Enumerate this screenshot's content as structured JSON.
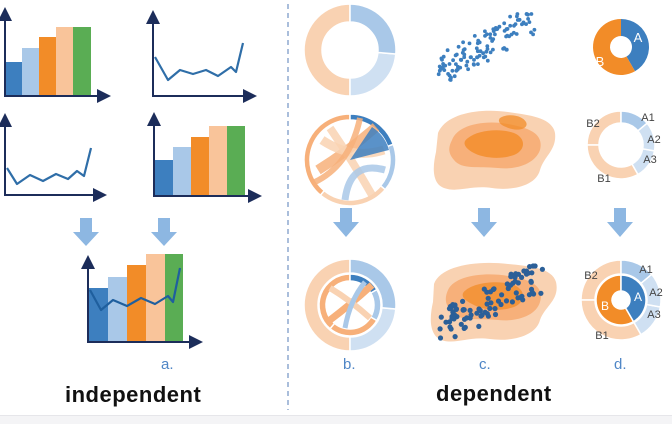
{
  "captions": {
    "independent_marker": "a.",
    "independent_label": "independent",
    "sunburst_marker": "b.",
    "scatter_marker": "c.",
    "donut_marker": "d.",
    "dependent_label": "dependent"
  },
  "donut": {
    "inner_labels": [
      "A",
      "B"
    ],
    "outer_labels": [
      "A1",
      "A2",
      "A3",
      "B1",
      "B2"
    ]
  },
  "colors": {
    "blue_dark": "#3d7fbf",
    "blue_light": "#a9c8e8",
    "blue_pale": "#cfe0f2",
    "orange": "#f28c28",
    "orange_mid": "#f7b07a",
    "orange_pale": "#f9d2b2",
    "green": "#5aad54",
    "arrow": "#8db7e2",
    "axis": "#1c2d5a"
  }
}
